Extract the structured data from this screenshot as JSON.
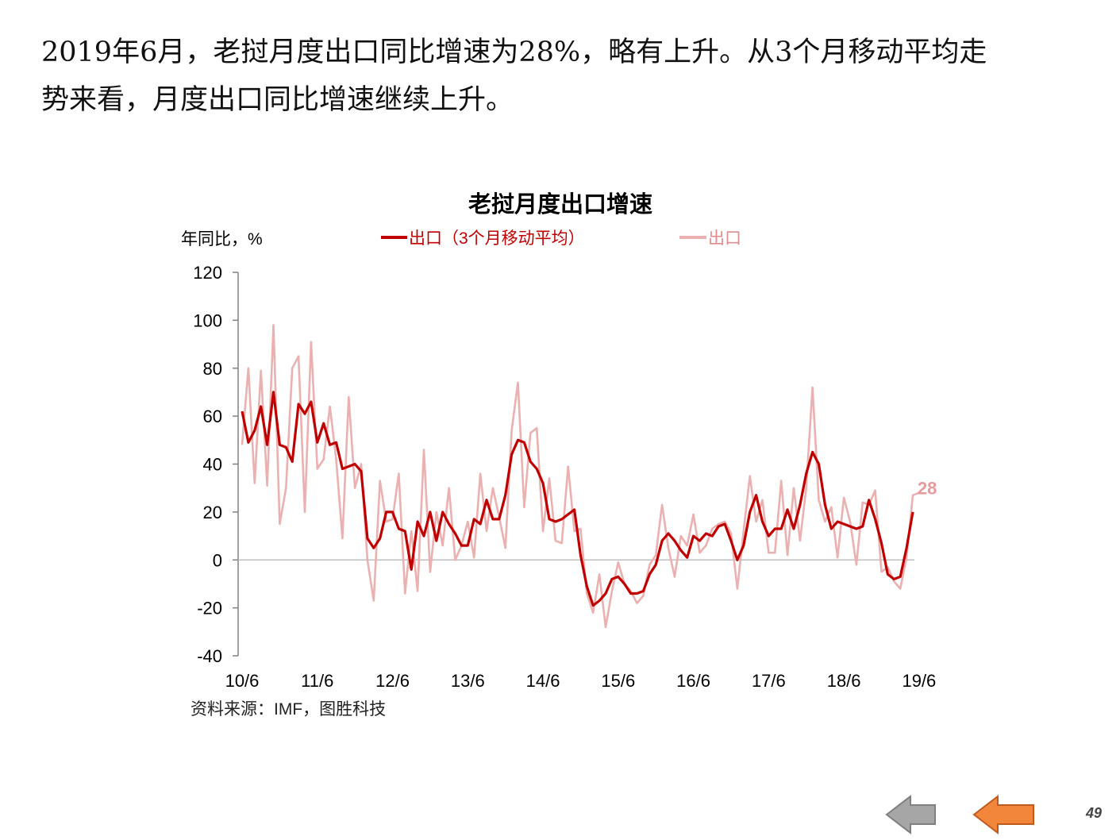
{
  "headline": {
    "line1": "2019年6月，老挝月度出口同比增速为28%，略有上升。从3个月移动平均走",
    "line2": "势来看，月度出口同比增速继续上升。"
  },
  "source": "资料来源：IMF，图胜科技",
  "page_number": "49",
  "nav": {
    "back_icon": "arrow-left-gray",
    "forward_icon": "arrow-left-orange"
  },
  "colors": {
    "ma_line": "#C00000",
    "raw_line": "#EBB0B0",
    "nav_gray": "#A6A6A6",
    "nav_orange": "#F2873B",
    "axis": "#808080"
  },
  "chart_data": {
    "type": "line",
    "title": "老挝月度出口增速",
    "ylabel": "年同比，%",
    "ylim": [
      -40,
      120
    ],
    "yticks": [
      120,
      100,
      80,
      60,
      40,
      20,
      0,
      -20,
      -40
    ],
    "xticks": [
      "10/6",
      "11/6",
      "12/6",
      "13/6",
      "14/6",
      "15/6",
      "16/6",
      "17/6",
      "18/6",
      "19/6"
    ],
    "x_start": "2010-06",
    "x_end": "2019-06",
    "grid": false,
    "legend_position": "top",
    "end_annotation": "28",
    "series": [
      {
        "name": "出口（3个月移动平均）",
        "color": "#C00000",
        "values": [
          62,
          49,
          54,
          64,
          48,
          70,
          48,
          47,
          41,
          65,
          61,
          66,
          49,
          57,
          48,
          49,
          38,
          39,
          40,
          37,
          9,
          5,
          9,
          20,
          20,
          13,
          12,
          -4,
          16,
          10,
          20,
          8,
          20,
          15,
          11,
          6,
          6,
          17,
          15,
          25,
          17,
          17,
          27,
          44,
          50,
          49,
          41,
          38,
          32,
          17,
          16,
          17,
          19,
          21,
          2,
          -11,
          -19,
          -17,
          -14,
          -8,
          -7,
          -10,
          -14,
          -14,
          -13,
          -6,
          -2,
          8,
          11,
          8,
          4,
          1,
          10,
          8,
          11,
          10,
          14,
          15,
          8,
          0,
          6,
          20,
          27,
          16,
          10,
          13,
          13,
          21,
          13,
          23,
          36,
          45,
          40,
          23,
          13,
          16,
          15,
          14,
          13,
          14,
          25,
          17,
          7,
          -6,
          -8,
          -7,
          5,
          20
        ]
      },
      {
        "name": "出口",
        "color": "#EBB0B0",
        "values": [
          48,
          80,
          32,
          79,
          31,
          98,
          15,
          30,
          80,
          85,
          20,
          91,
          38,
          42,
          64,
          42,
          9,
          68,
          30,
          40,
          0,
          -17,
          33,
          16,
          17,
          36,
          -14,
          12,
          -13,
          46,
          -5,
          20,
          6,
          30,
          0,
          6,
          16,
          1,
          36,
          12,
          30,
          18,
          5,
          54,
          74,
          22,
          53,
          55,
          12,
          34,
          8,
          7,
          39,
          12,
          13,
          -14,
          -22,
          -6,
          -28,
          -13,
          -1,
          -10,
          -13,
          -18,
          -15,
          -2,
          2,
          23,
          5,
          -7,
          10,
          6,
          19,
          3,
          6,
          13,
          15,
          16,
          11,
          -12,
          12,
          35,
          16,
          25,
          3,
          3,
          33,
          2,
          30,
          8,
          30,
          72,
          25,
          16,
          22,
          1,
          26,
          16,
          -2,
          24,
          23,
          29,
          -5,
          -3,
          -9,
          -12,
          1,
          27,
          28
        ]
      }
    ]
  }
}
